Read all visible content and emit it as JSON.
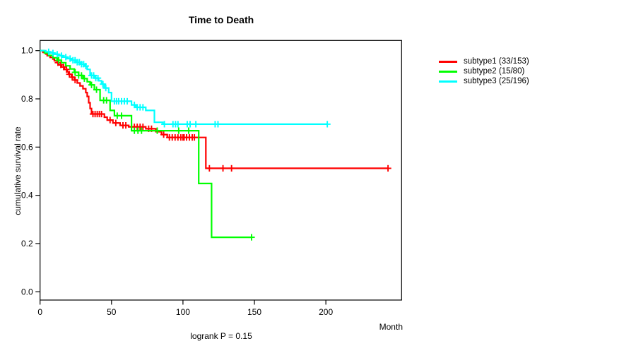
{
  "title": "Time to Death",
  "footnote": "logrank P = 0.15",
  "x_axis": {
    "unit_label": "Month",
    "ticks": [
      "0",
      "50",
      "100",
      "150",
      "200"
    ],
    "tick_values": [
      0,
      50,
      100,
      150,
      200
    ]
  },
  "y_axis": {
    "label": "cumulative survival rate",
    "ticks": [
      "0.0",
      "0.2",
      "0.4",
      "0.6",
      "0.8",
      "1.0"
    ],
    "tick_values": [
      0.0,
      0.2,
      0.4,
      0.6,
      0.8,
      1.0
    ]
  },
  "legend": {
    "items": [
      {
        "label": "subtype1 (33/153)",
        "color": "#ff0000"
      },
      {
        "label": "subtype2 (15/80)",
        "color": "#00ff00"
      },
      {
        "label": "subtype3 (25/196)",
        "color": "#00ffff"
      }
    ]
  },
  "chart_data": {
    "type": "line",
    "subtype": "kaplan-meier-step",
    "title": "Time to Death",
    "xlabel": "Month",
    "ylabel": "cumulative survival rate",
    "annotation": "logrank P = 0.15",
    "xlim": [
      0,
      253
    ],
    "ylim": [
      0,
      1
    ],
    "grid": false,
    "legend_position": "right-outside",
    "series": [
      {
        "name": "subtype1 (33/153)",
        "color": "#ff0000",
        "steps": [
          [
            0,
            1.0
          ],
          [
            2,
            0.993
          ],
          [
            4,
            0.986
          ],
          [
            5,
            0.979
          ],
          [
            7,
            0.972
          ],
          [
            9,
            0.965
          ],
          [
            10,
            0.958
          ],
          [
            12,
            0.95
          ],
          [
            13,
            0.941
          ],
          [
            15,
            0.932
          ],
          [
            17,
            0.922
          ],
          [
            19,
            0.912
          ],
          [
            20,
            0.902
          ],
          [
            22,
            0.89
          ],
          [
            24,
            0.878
          ],
          [
            26,
            0.866
          ],
          [
            28,
            0.854
          ],
          [
            30,
            0.842
          ],
          [
            32,
            0.826
          ],
          [
            33,
            0.81
          ],
          [
            34,
            0.784
          ],
          [
            35,
            0.76
          ],
          [
            36,
            0.737
          ],
          [
            45,
            0.724
          ],
          [
            47,
            0.712
          ],
          [
            51,
            0.7
          ],
          [
            56,
            0.69
          ],
          [
            62,
            0.684
          ],
          [
            74,
            0.676
          ],
          [
            81,
            0.664
          ],
          [
            85,
            0.652
          ],
          [
            89,
            0.64
          ],
          [
            116,
            0.512
          ]
        ],
        "end_time": 243.5,
        "censor_times": [
          12.5,
          14.5,
          16.5,
          18.5,
          20.5,
          22.5,
          24.5,
          37,
          38.5,
          40,
          41.5,
          43,
          49,
          53,
          58,
          60,
          64,
          66,
          68,
          70,
          72,
          76,
          78,
          86.5,
          90.5,
          92.5,
          94.5,
          96.5,
          98.5,
          100,
          100.8,
          102.5,
          104.5,
          106.5,
          108,
          118.5,
          128,
          134,
          243.5
        ]
      },
      {
        "name": "subtype2 (15/80)",
        "color": "#00ff00",
        "steps": [
          [
            0,
            1.0
          ],
          [
            3,
            0.99
          ],
          [
            6,
            0.98
          ],
          [
            9,
            0.97
          ],
          [
            12,
            0.96
          ],
          [
            15,
            0.95
          ],
          [
            18,
            0.937
          ],
          [
            21,
            0.924
          ],
          [
            24,
            0.91
          ],
          [
            27,
            0.897
          ],
          [
            30,
            0.884
          ],
          [
            33,
            0.871
          ],
          [
            35,
            0.858
          ],
          [
            38,
            0.838
          ],
          [
            42,
            0.794
          ],
          [
            49,
            0.752
          ],
          [
            52,
            0.73
          ],
          [
            64,
            0.668
          ],
          [
            111,
            0.449
          ],
          [
            120,
            0.226
          ]
        ],
        "end_time": 148,
        "censor_times": [
          13,
          24.5,
          27,
          29,
          31,
          36,
          39.5,
          44.5,
          46.5,
          54,
          57,
          66,
          68.5,
          71,
          82,
          97,
          104,
          148
        ]
      },
      {
        "name": "subtype3 (25/196)",
        "color": "#00ffff",
        "steps": [
          [
            0,
            1.0
          ],
          [
            4,
            0.995
          ],
          [
            7,
            0.99
          ],
          [
            10,
            0.985
          ],
          [
            13,
            0.979
          ],
          [
            16,
            0.973
          ],
          [
            19,
            0.967
          ],
          [
            22,
            0.96
          ],
          [
            25,
            0.952
          ],
          [
            28,
            0.944
          ],
          [
            31,
            0.936
          ],
          [
            33,
            0.922
          ],
          [
            35,
            0.897
          ],
          [
            38,
            0.886
          ],
          [
            41,
            0.875
          ],
          [
            43,
            0.861
          ],
          [
            45,
            0.845
          ],
          [
            48,
            0.826
          ],
          [
            50,
            0.79
          ],
          [
            64,
            0.775
          ],
          [
            67,
            0.765
          ],
          [
            74,
            0.752
          ],
          [
            80,
            0.703
          ],
          [
            86,
            0.695
          ]
        ],
        "end_time": 201,
        "censor_times": [
          6,
          9,
          12,
          15,
          18,
          21,
          23,
          24.5,
          26,
          27.5,
          29,
          30.5,
          32,
          36,
          37.5,
          39,
          40.5,
          44,
          46,
          52,
          53.5,
          55,
          57,
          59,
          61,
          66,
          68,
          70,
          72,
          87,
          93,
          94.8,
          96.5,
          103,
          105,
          109,
          122.5,
          124.5,
          201
        ]
      }
    ]
  }
}
